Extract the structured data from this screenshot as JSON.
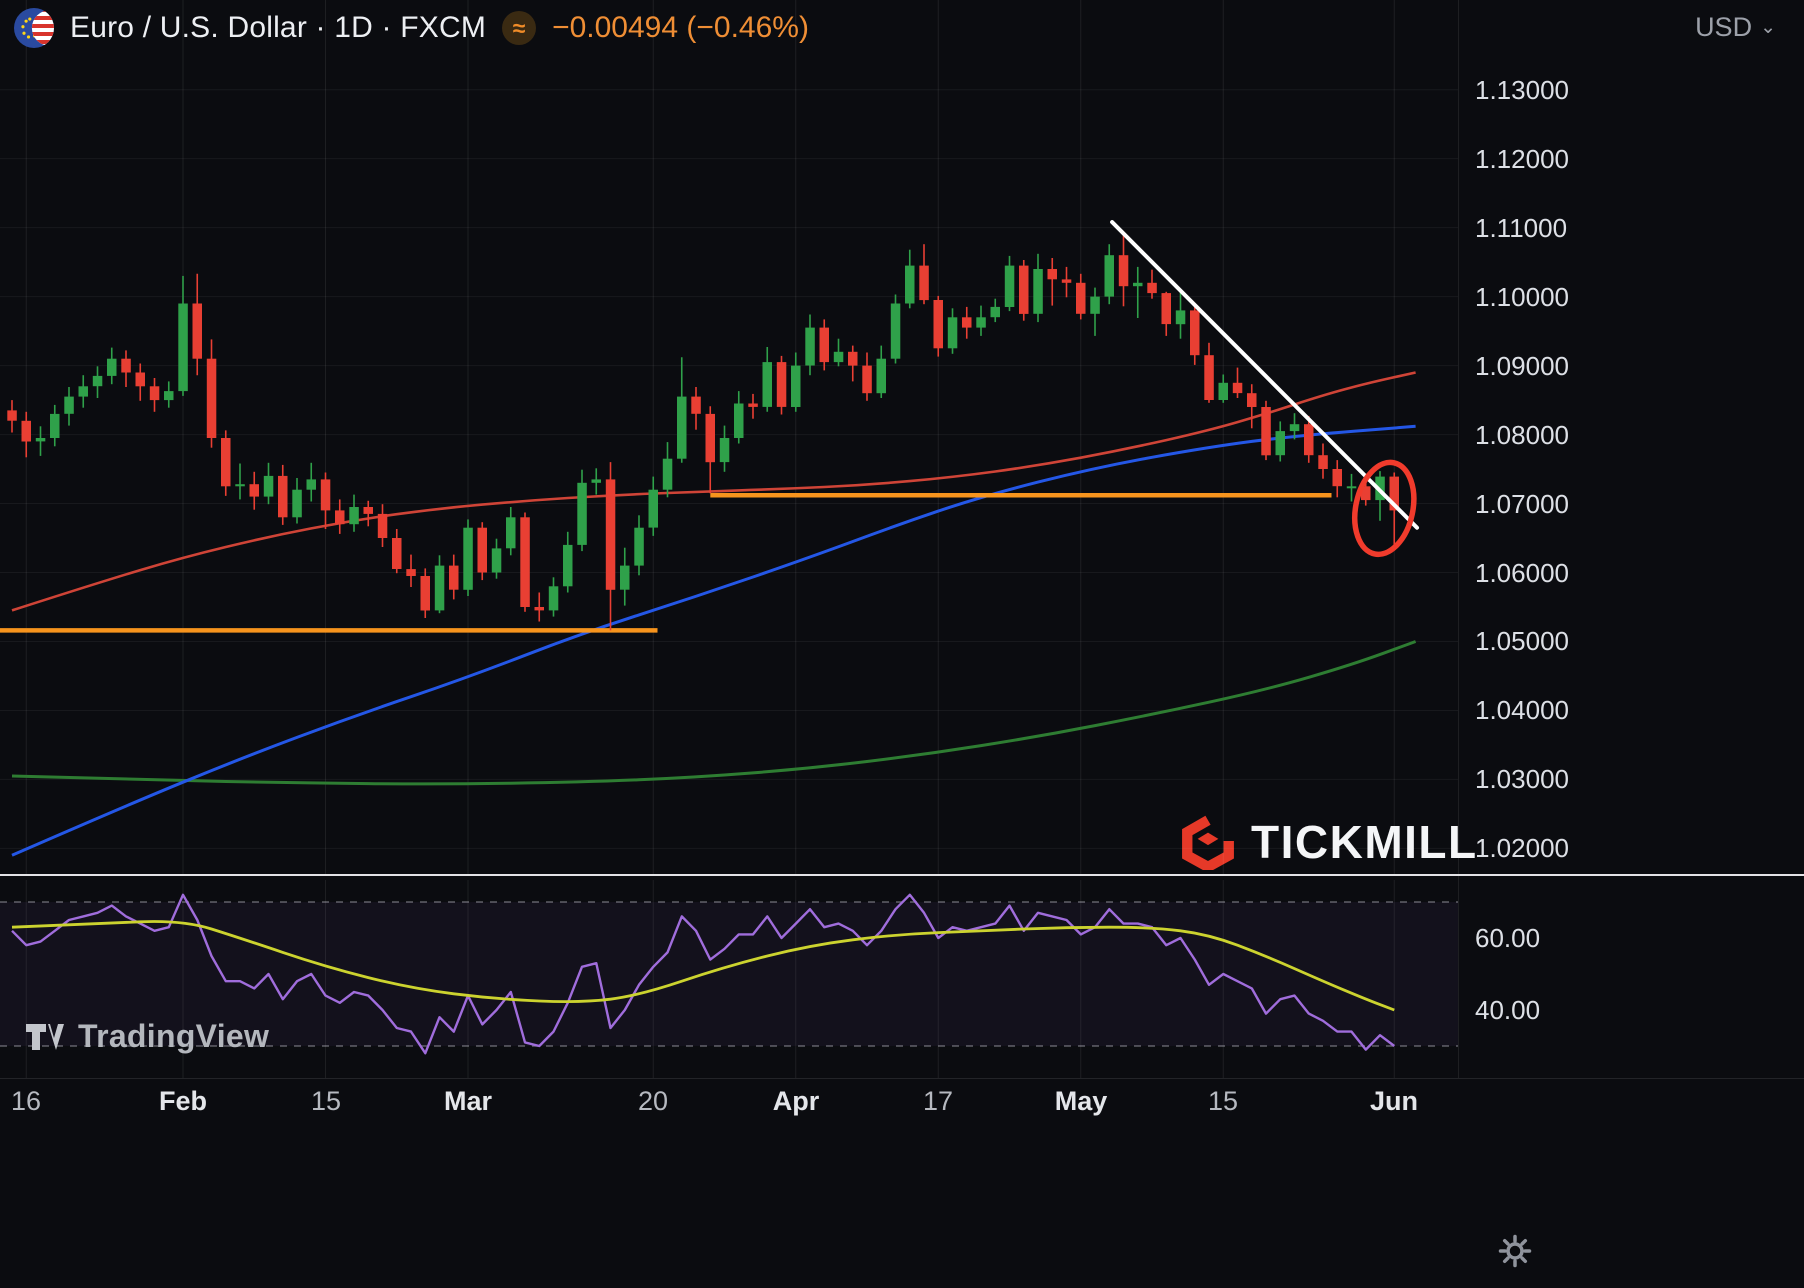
{
  "header": {
    "symbol_title": "Euro / U.S. Dollar · 1D · FXCM",
    "badge": "≈",
    "change_text": "−0.00494 (−0.46%)",
    "currency": "USD",
    "chevron": "⌄"
  },
  "watermark": {
    "brand": "TICKMILL"
  },
  "attribution": {
    "brand": "TradingView"
  },
  "price_axis": {
    "labels": [
      "1.13000",
      "1.12000",
      "1.11000",
      "1.10000",
      "1.09000",
      "1.08000",
      "1.07000",
      "1.06000",
      "1.05000",
      "1.04000",
      "1.03000",
      "1.02000"
    ],
    "values": [
      1.13,
      1.12,
      1.11,
      1.1,
      1.09,
      1.08,
      1.07,
      1.06,
      1.05,
      1.04,
      1.03,
      1.02
    ]
  },
  "indicator_axis": {
    "labels": [
      "60.00",
      "40.00"
    ],
    "values": [
      60,
      40
    ],
    "bands": [
      70,
      30
    ]
  },
  "time_axis": {
    "labels": [
      {
        "text": "16",
        "i": 1,
        "bold": false
      },
      {
        "text": "Feb",
        "i": 12,
        "bold": true
      },
      {
        "text": "15",
        "i": 22,
        "bold": false
      },
      {
        "text": "Mar",
        "i": 32,
        "bold": true
      },
      {
        "text": "20",
        "i": 45,
        "bold": false
      },
      {
        "text": "Apr",
        "i": 55,
        "bold": true
      },
      {
        "text": "17",
        "i": 65,
        "bold": false
      },
      {
        "text": "May",
        "i": 75,
        "bold": true
      },
      {
        "text": "15",
        "i": 85,
        "bold": false
      },
      {
        "text": "Jun",
        "i": 97,
        "bold": true
      }
    ]
  },
  "chart_data": {
    "type": "candlestick",
    "title": "Euro / U.S. Dollar · 1D · FXCM",
    "interval": "1D",
    "ylim": [
      1.016,
      1.143
    ],
    "indicator_ylim": [
      21,
      76
    ],
    "candles": {
      "open": [
        1.0835,
        1.082,
        1.079,
        1.0795,
        1.083,
        1.0855,
        1.087,
        1.0885,
        1.091,
        1.089,
        1.087,
        1.085,
        1.0863,
        1.099,
        1.091,
        1.0795,
        1.0725,
        1.0728,
        1.071,
        1.074,
        1.068,
        1.072,
        1.0735,
        1.069,
        1.067,
        1.0695,
        1.0685,
        1.065,
        1.0605,
        1.0595,
        1.0545,
        1.061,
        1.0575,
        1.0665,
        1.06,
        1.0635,
        1.068,
        1.055,
        1.0545,
        1.058,
        1.064,
        1.073,
        1.0735,
        1.0575,
        1.061,
        1.0665,
        1.072,
        1.0765,
        1.0855,
        1.083,
        1.076,
        1.0795,
        1.0845,
        1.084,
        1.0905,
        1.084,
        1.09,
        1.0955,
        1.0905,
        1.092,
        1.09,
        1.086,
        1.091,
        1.099,
        1.1045,
        1.0995,
        1.0925,
        1.097,
        1.0955,
        1.097,
        1.0985,
        1.1045,
        1.0975,
        1.104,
        1.1025,
        1.102,
        1.0975,
        1.1,
        1.106,
        1.1015,
        1.102,
        1.1005,
        1.096,
        1.098,
        1.0915,
        1.085,
        1.0875,
        1.086,
        1.084,
        1.077,
        1.0805,
        1.0815,
        1.077,
        1.075,
        1.0725,
        1.0725,
        1.0705,
        1.0739
      ],
      "high": [
        1.085,
        1.0833,
        1.0812,
        1.0843,
        1.0869,
        1.0886,
        1.0899,
        1.0926,
        1.0922,
        1.0903,
        1.0882,
        1.0877,
        1.103,
        1.1033,
        1.0938,
        1.0806,
        1.0758,
        1.0746,
        1.0759,
        1.0756,
        1.0737,
        1.0759,
        1.0745,
        1.0706,
        1.0713,
        1.0704,
        1.0699,
        1.0663,
        1.0626,
        1.0606,
        1.0625,
        1.0626,
        1.0677,
        1.0673,
        1.0649,
        1.0695,
        1.0687,
        1.0571,
        1.0593,
        1.0659,
        1.0749,
        1.0751,
        1.076,
        1.0636,
        1.0683,
        1.0739,
        1.0789,
        1.0912,
        1.0869,
        1.0841,
        1.0813,
        1.0863,
        1.0859,
        1.0927,
        1.0914,
        1.0919,
        1.0974,
        1.0967,
        1.0939,
        1.0929,
        1.0919,
        1.0929,
        1.1003,
        1.1068,
        1.1076,
        1.1001,
        1.0983,
        1.0985,
        1.0987,
        1.0997,
        1.1059,
        1.1053,
        1.1062,
        1.1056,
        1.1043,
        1.1033,
        1.1013,
        1.1076,
        1.1092,
        1.1043,
        1.1039,
        1.1007,
        1.1007,
        1.0987,
        1.0933,
        1.0887,
        1.0897,
        1.0873,
        1.0849,
        1.0819,
        1.0831,
        1.0827,
        1.0787,
        1.0763,
        1.0743,
        1.0733,
        1.0747,
        1.0745
      ],
      "low": [
        1.0803,
        1.0767,
        1.0769,
        1.0783,
        1.0813,
        1.0839,
        1.0853,
        1.0873,
        1.0869,
        1.0849,
        1.0833,
        1.0839,
        1.0856,
        1.0886,
        1.0781,
        1.0711,
        1.0706,
        1.0691,
        1.0699,
        1.0669,
        1.0671,
        1.0703,
        1.0663,
        1.0656,
        1.0659,
        1.0667,
        1.0637,
        1.0599,
        1.0579,
        1.0534,
        1.0541,
        1.0561,
        1.0566,
        1.0589,
        1.0591,
        1.0625,
        1.0543,
        1.0529,
        1.0536,
        1.0571,
        1.0631,
        1.0713,
        1.0516,
        1.0552,
        1.0596,
        1.0653,
        1.0709,
        1.0759,
        1.0807,
        1.0715,
        1.0746,
        1.0787,
        1.0823,
        1.0833,
        1.0829,
        1.0833,
        1.0886,
        1.0893,
        1.0899,
        1.0877,
        1.0849,
        1.0853,
        1.0903,
        1.0983,
        1.0989,
        1.0913,
        1.0917,
        1.0939,
        1.0943,
        1.0963,
        1.0979,
        1.0965,
        1.0963,
        1.0987,
        1.0999,
        1.0967,
        1.0943,
        1.0989,
        1.0986,
        1.0969,
        1.0997,
        1.0943,
        1.0939,
        1.0901,
        1.0846,
        1.0846,
        1.0853,
        1.0809,
        1.0763,
        1.0761,
        1.0793,
        1.0759,
        1.0736,
        1.0709,
        1.0703,
        1.0697,
        1.0675,
        1.0635
      ],
      "close": [
        1.082,
        1.079,
        1.0795,
        1.083,
        1.0855,
        1.087,
        1.0885,
        1.091,
        1.089,
        1.087,
        1.085,
        1.0863,
        1.099,
        1.091,
        1.0795,
        1.0725,
        1.0728,
        1.071,
        1.074,
        1.068,
        1.072,
        1.0735,
        1.069,
        1.067,
        1.0695,
        1.0685,
        1.065,
        1.0605,
        1.0595,
        1.0545,
        1.061,
        1.0575,
        1.0665,
        1.06,
        1.0635,
        1.068,
        1.055,
        1.0545,
        1.058,
        1.064,
        1.073,
        1.0735,
        1.0575,
        1.061,
        1.0665,
        1.072,
        1.0765,
        1.0855,
        1.083,
        1.076,
        1.0795,
        1.0845,
        1.084,
        1.0905,
        1.084,
        1.09,
        1.0955,
        1.0905,
        1.092,
        1.09,
        1.086,
        1.091,
        1.099,
        1.1045,
        1.0995,
        1.0925,
        1.097,
        1.0955,
        1.097,
        1.0985,
        1.1045,
        1.0975,
        1.104,
        1.1025,
        1.102,
        1.0975,
        1.1,
        1.106,
        1.1015,
        1.102,
        1.1005,
        1.096,
        1.098,
        1.0915,
        1.085,
        1.0875,
        1.086,
        1.084,
        1.077,
        1.0805,
        1.0815,
        1.077,
        1.075,
        1.0725,
        1.0725,
        1.0705,
        1.0739,
        1.069
      ]
    },
    "overlays": {
      "ma_red": [
        [
          0,
          1.0545
        ],
        [
          6,
          1.0585
        ],
        [
          12,
          1.0622
        ],
        [
          18,
          1.0652
        ],
        [
          24,
          1.0676
        ],
        [
          30,
          1.0693
        ],
        [
          36,
          1.0704
        ],
        [
          42,
          1.0712
        ],
        [
          48,
          1.0717
        ],
        [
          54,
          1.0721
        ],
        [
          60,
          1.0727
        ],
        [
          66,
          1.0738
        ],
        [
          72,
          1.0755
        ],
        [
          78,
          1.0778
        ],
        [
          84,
          1.0806
        ],
        [
          88,
          1.083
        ],
        [
          92,
          1.0857
        ],
        [
          95,
          1.0874
        ],
        [
          98.5,
          1.089
        ]
      ],
      "ma_blue": [
        [
          0,
          1.019
        ],
        [
          8,
          1.0262
        ],
        [
          16,
          1.033
        ],
        [
          24,
          1.0392
        ],
        [
          32,
          1.0448
        ],
        [
          40,
          1.0512
        ],
        [
          48,
          1.0565
        ],
        [
          56,
          1.0622
        ],
        [
          62,
          1.0668
        ],
        [
          68,
          1.071
        ],
        [
          76,
          1.0752
        ],
        [
          84,
          1.0782
        ],
        [
          90,
          1.0798
        ],
        [
          98.5,
          1.0812
        ]
      ],
      "ma_green": [
        [
          0,
          1.0305
        ],
        [
          10,
          1.0299
        ],
        [
          20,
          1.0295
        ],
        [
          30,
          1.0293
        ],
        [
          40,
          1.0296
        ],
        [
          48,
          1.0303
        ],
        [
          56,
          1.0316
        ],
        [
          64,
          1.0336
        ],
        [
          72,
          1.0362
        ],
        [
          80,
          1.0394
        ],
        [
          88,
          1.043
        ],
        [
          94,
          1.0466
        ],
        [
          98.5,
          1.05
        ]
      ]
    },
    "drawings": {
      "trendline": {
        "from": [
          77.2,
          1.1108
        ],
        "to": [
          98.6,
          1.0665
        ]
      },
      "support_lines": [
        {
          "price": 1.0516,
          "from": -1,
          "to": 45.3
        },
        {
          "price": 1.0712,
          "from": 49,
          "to": 92.6
        }
      ],
      "ellipse": {
        "index": 96.3,
        "price": 1.0693,
        "width_bars": 4.0,
        "height_price": 0.0135,
        "rotation": 12
      }
    },
    "indicator": {
      "name": "RSI",
      "rsi": [
        62,
        58,
        59,
        62,
        65,
        66,
        67,
        69,
        66,
        64,
        62,
        63,
        72,
        65,
        55,
        48,
        48,
        46,
        50,
        43,
        48,
        50,
        44,
        42,
        45,
        44,
        40,
        35,
        34,
        28,
        38,
        34,
        44,
        36,
        40,
        45,
        31,
        30,
        34,
        42,
        52,
        53,
        35,
        40,
        47,
        52,
        56,
        66,
        62,
        54,
        57,
        61,
        61,
        66,
        60,
        64,
        68,
        63,
        64,
        62,
        58,
        62,
        68,
        72,
        67,
        60,
        63,
        62,
        63,
        64,
        69,
        62,
        67,
        66,
        65,
        61,
        63,
        68,
        64,
        64,
        63,
        58,
        60,
        54,
        47,
        50,
        48,
        46,
        39,
        43,
        44,
        39,
        37,
        34,
        34,
        29,
        33,
        30
      ],
      "rsi_ma": [
        [
          0,
          63
        ],
        [
          6,
          64
        ],
        [
          12,
          65
        ],
        [
          16,
          60
        ],
        [
          22,
          52
        ],
        [
          28,
          46
        ],
        [
          34,
          43
        ],
        [
          40,
          42
        ],
        [
          44,
          44
        ],
        [
          50,
          52
        ],
        [
          56,
          58
        ],
        [
          62,
          61
        ],
        [
          68,
          62
        ],
        [
          74,
          63
        ],
        [
          80,
          63
        ],
        [
          84,
          61
        ],
        [
          88,
          55
        ],
        [
          92,
          48
        ],
        [
          95,
          43
        ],
        [
          97,
          40
        ]
      ]
    },
    "colors": {
      "up": "#2fa14a",
      "down": "#e93f33",
      "ma_red": "#cf4437",
      "ma_blue": "#2457e6",
      "ma_green": "#2e7d32",
      "support": "#f7941d",
      "trendline": "#ffffff",
      "ellipse": "#f13b2c",
      "rsi": "#a06ddc",
      "rsi_ma": "#ccd32f",
      "rsi_band_fill": "rgba(155,110,220,0.06)",
      "band_line": "rgba(200,200,210,0.45)",
      "grid": "rgba(255,255,255,0.08)",
      "grid_h": "rgba(255,255,255,0.055)"
    }
  }
}
